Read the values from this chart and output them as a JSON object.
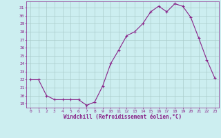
{
  "hours": [
    0,
    1,
    2,
    3,
    4,
    5,
    6,
    7,
    8,
    9,
    10,
    11,
    12,
    13,
    14,
    15,
    16,
    17,
    18,
    19,
    20,
    21,
    22,
    23
  ],
  "values": [
    22,
    22,
    20,
    19.5,
    19.5,
    19.5,
    19.5,
    18.8,
    19.2,
    21.2,
    24.0,
    25.7,
    27.5,
    28.0,
    29.0,
    30.5,
    31.2,
    30.5,
    31.5,
    31.2,
    29.8,
    27.2,
    24.5,
    22.2
  ],
  "line_color": "#882288",
  "marker": "+",
  "marker_size": 3,
  "bg_color": "#cceef0",
  "grid_color": "#aacccc",
  "tick_color": "#882288",
  "label_color": "#882288",
  "xlabel": "Windchill (Refroidissement éolien,°C)",
  "ylim": [
    18.5,
    31.8
  ],
  "yticks": [
    19,
    20,
    21,
    22,
    23,
    24,
    25,
    26,
    27,
    28,
    29,
    30,
    31
  ],
  "xticks": [
    0,
    1,
    2,
    3,
    4,
    5,
    6,
    7,
    8,
    9,
    10,
    11,
    12,
    13,
    14,
    15,
    16,
    17,
    18,
    19,
    20,
    21,
    22,
    23
  ],
  "line_width": 0.8
}
